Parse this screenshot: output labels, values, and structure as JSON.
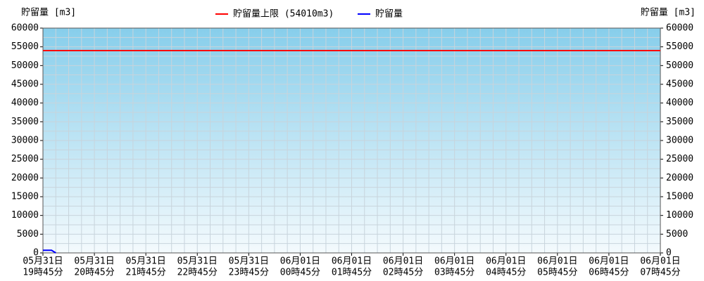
{
  "chart_data": {
    "type": "line",
    "y_label": "貯留量 [m3]",
    "y2_label": "貯留量 [m3]",
    "categories": [
      [
        "05月31日",
        "19時45分"
      ],
      [
        "05月31日",
        "20時45分"
      ],
      [
        "05月31日",
        "21時45分"
      ],
      [
        "05月31日",
        "22時45分"
      ],
      [
        "05月31日",
        "23時45分"
      ],
      [
        "06月01日",
        "00時45分"
      ],
      [
        "06月01日",
        "01時45分"
      ],
      [
        "06月01日",
        "02時45分"
      ],
      [
        "06月01日",
        "03時45分"
      ],
      [
        "06月01日",
        "04時45分"
      ],
      [
        "06月01日",
        "05時45分"
      ],
      [
        "06月01日",
        "06時45分"
      ],
      [
        "06月01日",
        "07時45分"
      ]
    ],
    "limit": {
      "name": "貯留量上限 (54010m3)",
      "color": "#ff0000",
      "value": 54010
    },
    "series": [
      {
        "name": "貯留量",
        "color": "#0000ff",
        "x": [
          "05月31日 19時45分",
          "05月31日 19時50分",
          "05月31日 19時55分",
          "05月31日 20時00分"
        ],
        "values": [
          700,
          700,
          700,
          0
        ]
      }
    ],
    "ylim": [
      0,
      60000
    ],
    "yticks": [
      0,
      5000,
      10000,
      15000,
      20000,
      25000,
      30000,
      35000,
      40000,
      45000,
      50000,
      55000,
      60000
    ],
    "y2lim": [
      0,
      60000
    ],
    "y2ticks": [
      0,
      5000,
      10000,
      15000,
      20000,
      25000,
      30000,
      35000,
      40000,
      45000,
      50000,
      55000,
      60000
    ],
    "grid": true
  }
}
